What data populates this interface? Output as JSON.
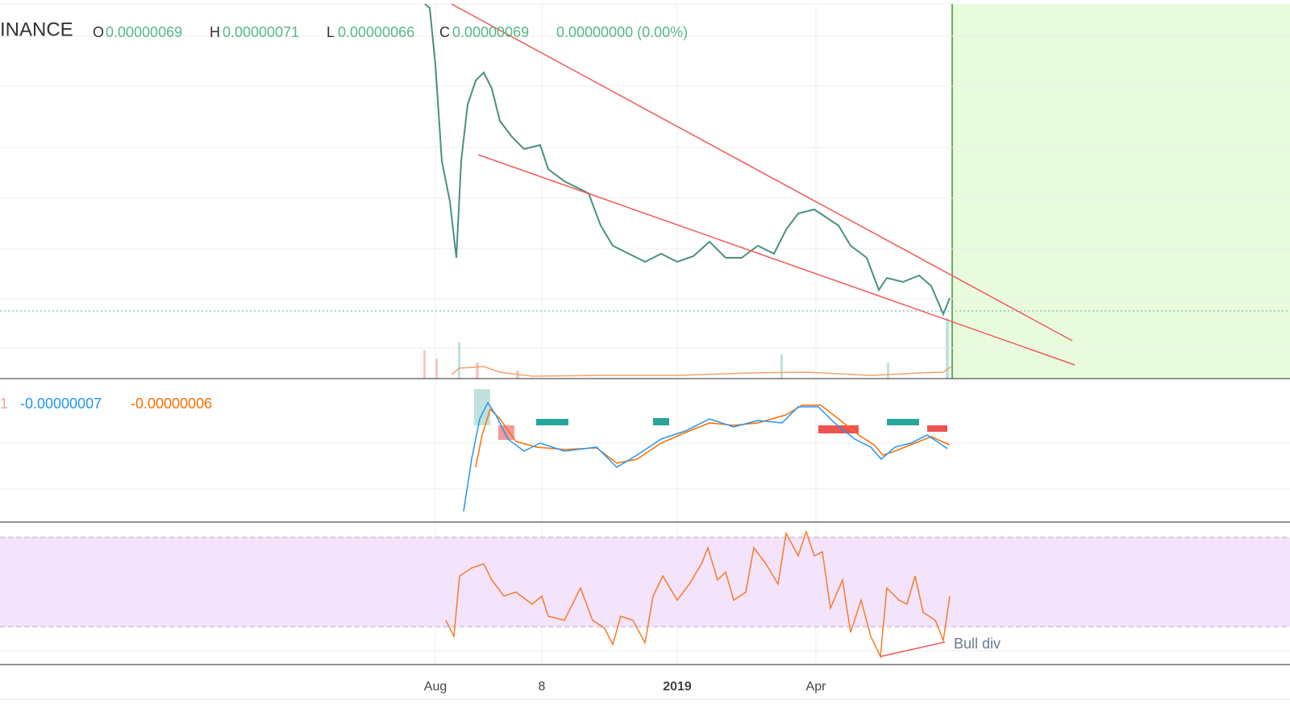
{
  "header": {
    "symbol": "INANCE",
    "ohlc": [
      {
        "label": "O",
        "value": "0.00000069"
      },
      {
        "label": "H",
        "value": "0.00000071"
      },
      {
        "label": "L",
        "value": "0.00000066"
      },
      {
        "label": "C",
        "value": "0.00000069"
      }
    ],
    "change": "0.00000000 (0.00%)"
  },
  "macd": {
    "cut_value": "1",
    "macd": "-0.00000007",
    "signal": "-0.00000006"
  },
  "rsi": {
    "annotation": "Bull div"
  },
  "time_axis": {
    "labels": [
      "Aug",
      "8",
      "2019",
      "Apr"
    ]
  }
}
